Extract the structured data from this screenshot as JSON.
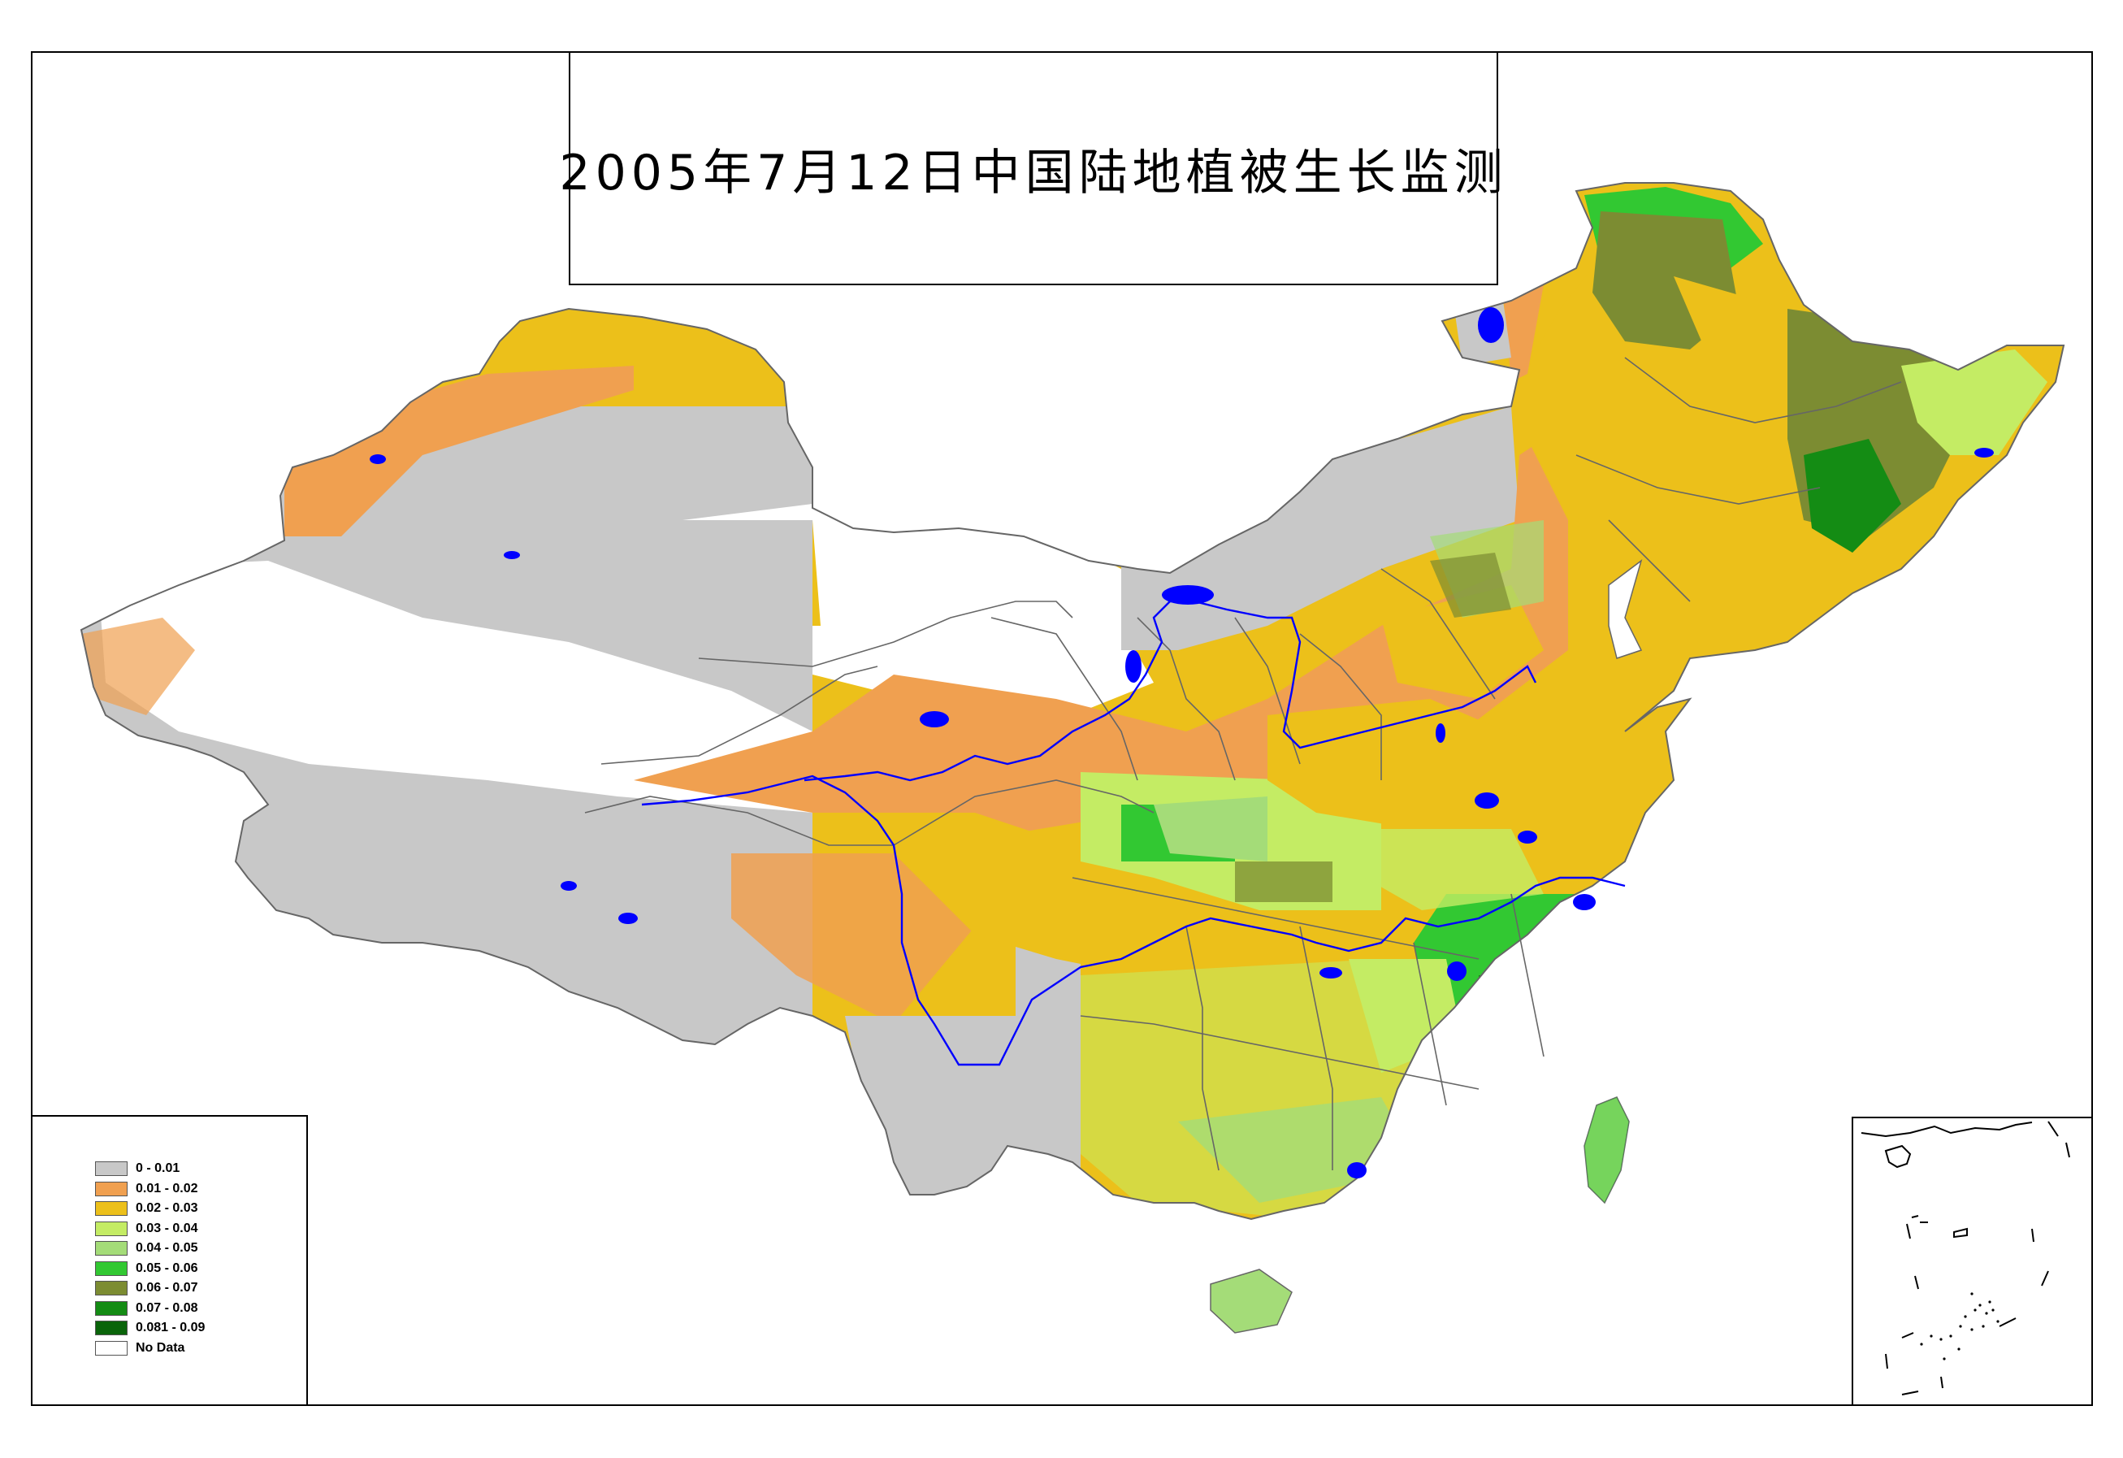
{
  "title": "2005年7月12日中国陆地植被生长监测",
  "legend": {
    "items": [
      {
        "label": "0 - 0.01",
        "color": "#c8c8c8"
      },
      {
        "label": "0.01 - 0.02",
        "color": "#f0a050"
      },
      {
        "label": "0.02 - 0.03",
        "color": "#ecc01a"
      },
      {
        "label": "0.03 - 0.04",
        "color": "#c4ec64"
      },
      {
        "label": "0.04 - 0.05",
        "color": "#a4dc78"
      },
      {
        "label": "0.05 - 0.06",
        "color": "#32c832"
      },
      {
        "label": "0.06 - 0.07",
        "color": "#7c8c32"
      },
      {
        "label": "0.07 - 0.08",
        "color": "#148c14"
      },
      {
        "label": "0.081 - 0.09",
        "color": "#0a640a"
      },
      {
        "label": "No Data",
        "color": "#ffffff"
      }
    ]
  },
  "colors": {
    "water": "#0000ff",
    "border": "#666666"
  }
}
